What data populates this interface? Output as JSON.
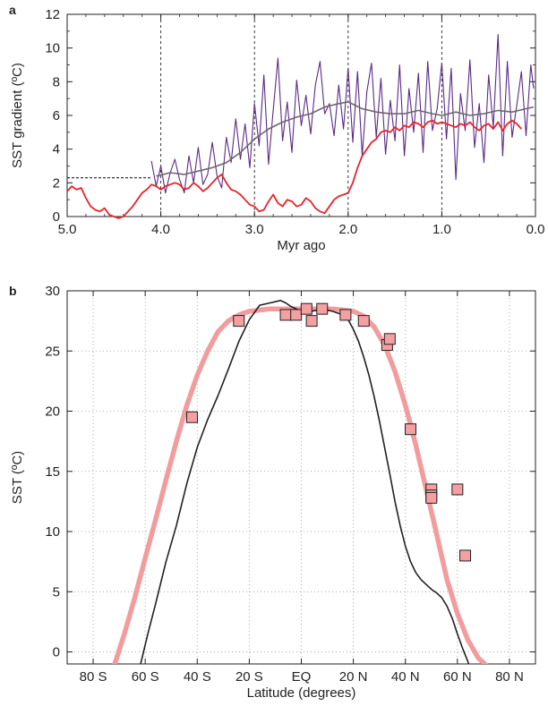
{
  "chart_data": [
    {
      "panel_label": "a",
      "type": "line",
      "xlabel": "Myr ago",
      "ylabel": "SST gradient (ºC)",
      "xlim": [
        5.0,
        0.0
      ],
      "ylim": [
        0,
        12
      ],
      "x_ticks": [
        "5.0",
        "4.0",
        "3.0",
        "2.0",
        "1.0",
        "0.0"
      ],
      "y_ticks": [
        "0",
        "2",
        "4",
        "6",
        "8",
        "10",
        "12"
      ],
      "vertical_dashed_lines": [
        4.0,
        3.0,
        2.0,
        1.0
      ],
      "horizontal_dashed_segment": {
        "y": 2.3,
        "x_from": 5.0,
        "x_to": 4.1
      },
      "colors": {
        "purple": "#5b2a86",
        "smooth": "#6e6670",
        "red": "#e8232b",
        "axis": "#231f20",
        "dash": "#231f20"
      },
      "series": [
        {
          "color": "#5b2a86",
          "x": [
            4.1,
            4.05,
            4.0,
            3.95,
            3.9,
            3.85,
            3.8,
            3.75,
            3.7,
            3.65,
            3.6,
            3.55,
            3.5,
            3.45,
            3.4,
            3.35,
            3.3,
            3.25,
            3.2,
            3.15,
            3.1,
            3.05,
            3.0,
            2.95,
            2.9,
            2.85,
            2.8,
            2.75,
            2.7,
            2.65,
            2.6,
            2.55,
            2.5,
            2.45,
            2.4,
            2.35,
            2.3,
            2.25,
            2.2,
            2.15,
            2.1,
            2.05,
            2.0,
            1.95,
            1.9,
            1.85,
            1.8,
            1.75,
            1.7,
            1.65,
            1.6,
            1.55,
            1.5,
            1.45,
            1.4,
            1.35,
            1.3,
            1.25,
            1.2,
            1.15,
            1.1,
            1.05,
            1.0,
            0.95,
            0.9,
            0.85,
            0.8,
            0.75,
            0.7,
            0.65,
            0.6,
            0.55,
            0.5,
            0.45,
            0.4,
            0.35,
            0.3,
            0.25,
            0.2,
            0.15,
            0.1,
            0.05,
            0.02
          ],
          "y": [
            3.3,
            1.8,
            3.0,
            1.4,
            2.6,
            3.4,
            2.2,
            1.4,
            3.6,
            2.0,
            4.1,
            1.9,
            2.5,
            4.4,
            2.4,
            1.7,
            4.7,
            3.2,
            5.8,
            3.4,
            5.5,
            2.9,
            6.7,
            4.2,
            8.4,
            3.1,
            6.3,
            9.4,
            4.5,
            6.8,
            3.8,
            8.1,
            5.4,
            7.2,
            4.9,
            7.8,
            9.2,
            6.1,
            6.7,
            4.8,
            7.8,
            5.2,
            8.8,
            4.4,
            8.6,
            3.6,
            7.4,
            9.1,
            4.7,
            8.2,
            3.7,
            6.9,
            4.5,
            9.0,
            3.6,
            7.6,
            5.0,
            8.5,
            3.8,
            9.2,
            5.1,
            6.4,
            9.1,
            4.6,
            8.8,
            2.2,
            7.3,
            5.1,
            9.3,
            4.1,
            6.7,
            3.2,
            8.4,
            5.3,
            10.8,
            3.6,
            9.2,
            4.7,
            6.6,
            8.6,
            4.8,
            9.0,
            7.6
          ]
        },
        {
          "color": "#6e6670",
          "x": [
            4.05,
            3.9,
            3.75,
            3.6,
            3.45,
            3.3,
            3.15,
            3.0,
            2.85,
            2.7,
            2.55,
            2.4,
            2.25,
            2.1,
            2.0,
            1.85,
            1.7,
            1.55,
            1.4,
            1.25,
            1.1,
            1.0,
            0.85,
            0.7,
            0.55,
            0.4,
            0.25,
            0.1,
            0.02
          ],
          "y": [
            2.4,
            2.6,
            2.5,
            2.7,
            2.9,
            3.2,
            3.8,
            4.6,
            5.2,
            5.6,
            5.9,
            6.1,
            6.5,
            6.7,
            6.8,
            6.4,
            6.2,
            6.1,
            6.1,
            6.3,
            6.1,
            6.0,
            6.2,
            6.0,
            6.1,
            6.3,
            6.2,
            6.4,
            6.5
          ]
        },
        {
          "color": "#e8232b",
          "x": [
            5.0,
            4.95,
            4.9,
            4.85,
            4.8,
            4.75,
            4.7,
            4.65,
            4.6,
            4.55,
            4.5,
            4.45,
            4.4,
            4.35,
            4.3,
            4.25,
            4.2,
            4.15,
            4.1,
            4.05,
            4.0,
            3.95,
            3.9,
            3.85,
            3.8,
            3.75,
            3.7,
            3.65,
            3.6,
            3.55,
            3.5,
            3.45,
            3.4,
            3.35,
            3.3,
            3.25,
            3.2,
            3.15,
            3.1,
            3.05,
            3.0,
            2.95,
            2.9,
            2.85,
            2.8,
            2.75,
            2.7,
            2.65,
            2.6,
            2.55,
            2.5,
            2.45,
            2.4,
            2.35,
            2.3,
            2.25,
            2.2,
            2.15,
            2.1,
            2.05,
            2.0,
            1.95,
            1.9,
            1.85,
            1.8,
            1.75,
            1.7,
            1.65,
            1.6,
            1.55,
            1.5,
            1.45,
            1.4,
            1.35,
            1.3,
            1.25,
            1.2,
            1.15,
            1.1,
            1.05,
            1.0,
            0.95,
            0.9,
            0.85,
            0.8,
            0.75,
            0.7,
            0.65,
            0.6,
            0.55,
            0.5,
            0.45,
            0.4,
            0.35,
            0.3,
            0.25,
            0.2,
            0.15
          ],
          "y": [
            1.5,
            1.8,
            1.6,
            1.7,
            1.1,
            0.6,
            0.4,
            0.3,
            0.5,
            0.1,
            0.0,
            -0.1,
            0.0,
            0.3,
            0.6,
            1.0,
            1.4,
            1.6,
            1.9,
            1.8,
            1.6,
            1.8,
            1.9,
            2.0,
            1.9,
            1.6,
            1.7,
            2.0,
            1.8,
            1.5,
            1.7,
            2.0,
            2.3,
            2.5,
            2.0,
            1.6,
            1.5,
            1.3,
            1.0,
            0.7,
            0.6,
            0.3,
            0.4,
            0.9,
            1.3,
            0.8,
            0.6,
            1.0,
            0.9,
            0.6,
            0.7,
            1.1,
            0.9,
            0.5,
            0.3,
            0.2,
            0.6,
            1.0,
            1.2,
            1.3,
            1.4,
            2.0,
            2.9,
            3.6,
            4.0,
            4.4,
            4.6,
            5.0,
            5.1,
            5.0,
            5.3,
            5.1,
            5.4,
            5.3,
            5.6,
            5.5,
            5.3,
            5.6,
            5.7,
            5.5,
            5.6,
            5.5,
            5.4,
            5.3,
            5.5,
            5.4,
            5.6,
            5.3,
            5.1,
            5.4,
            5.5,
            5.2,
            5.6,
            5.1,
            5.5,
            5.7,
            5.5,
            5.2
          ]
        }
      ]
    },
    {
      "panel_label": "b",
      "type": "line",
      "xlabel": "Latitude (degrees)",
      "ylabel": "SST (ºC)",
      "xlim": [
        -90,
        90
      ],
      "ylim": [
        -1,
        30
      ],
      "x_ticks": [
        "80 S",
        "60 S",
        "40 S",
        "20 S",
        "EQ",
        "20 N",
        "40 N",
        "60 N",
        "80 N"
      ],
      "x_tick_values": [
        -80,
        -60,
        -40,
        -20,
        0,
        20,
        40,
        60,
        80
      ],
      "y_ticks": [
        "0",
        "5",
        "10",
        "15",
        "20",
        "25",
        "30"
      ],
      "y_tick_values": [
        0,
        5,
        10,
        15,
        20,
        25,
        30
      ],
      "grid": "dotted",
      "colors": {
        "pink_curve": "#f29c9e",
        "marker_fill": "#f4a0a2",
        "marker_edge": "#231f20",
        "black_curve": "#231f20"
      },
      "series": [
        {
          "color": "#f29c9e",
          "x": [
            -72,
            -68,
            -64,
            -60,
            -56,
            -52,
            -48,
            -44,
            -40,
            -36,
            -32,
            -28,
            -24,
            -20,
            -16,
            -12,
            -8,
            -4,
            0,
            4,
            8,
            12,
            16,
            20,
            24,
            28,
            32,
            36,
            40,
            44,
            48,
            52,
            56,
            60,
            64,
            68,
            72,
            74
          ],
          "y": [
            -1.2,
            1.5,
            4.5,
            7.8,
            11.0,
            14.3,
            17.5,
            20.5,
            23.0,
            25.0,
            26.6,
            27.5,
            28.0,
            28.3,
            28.4,
            28.5,
            28.5,
            28.5,
            28.5,
            28.5,
            28.5,
            28.5,
            28.4,
            28.3,
            27.9,
            27.0,
            25.5,
            23.3,
            20.5,
            17.2,
            13.5,
            9.8,
            6.0,
            3.2,
            1.0,
            -0.5,
            -1.3,
            -1.5
          ]
        },
        {
          "color": "#231f20",
          "x": [
            -62,
            -59,
            -56,
            -52,
            -48,
            -44,
            -40,
            -36,
            -32,
            -28,
            -24,
            -20,
            -16,
            -12,
            -8,
            -6,
            -4,
            0,
            4,
            8,
            12,
            16,
            18,
            20,
            22,
            24,
            26,
            28,
            30,
            32,
            34,
            36,
            38,
            40,
            42,
            44,
            46,
            48,
            50,
            52,
            54,
            56,
            58,
            60,
            62,
            64,
            65
          ],
          "y": [
            -1.2,
            1.5,
            4.0,
            7.5,
            10.5,
            14.0,
            17.0,
            19.3,
            21.3,
            23.5,
            25.8,
            27.6,
            28.8,
            29.0,
            29.2,
            29.0,
            28.7,
            28.3,
            28.3,
            28.5,
            28.3,
            28.0,
            27.6,
            26.8,
            25.8,
            24.5,
            23.0,
            21.2,
            19.2,
            17.0,
            14.8,
            12.5,
            10.5,
            8.8,
            7.5,
            6.6,
            6.0,
            5.6,
            5.2,
            4.9,
            4.5,
            3.8,
            2.8,
            1.5,
            0.3,
            -0.8,
            -1.5
          ]
        }
      ],
      "markers": {
        "shape": "square",
        "x": [
          -42,
          -24,
          -6,
          -2,
          2,
          4,
          8,
          17,
          24,
          33,
          34,
          42,
          50,
          50,
          50,
          60,
          63
        ],
        "y": [
          19.5,
          27.5,
          28.0,
          28.0,
          28.5,
          27.5,
          28.5,
          28.0,
          27.5,
          25.5,
          26.0,
          18.5,
          13.5,
          13.0,
          12.8,
          13.5,
          8.0
        ]
      }
    }
  ]
}
